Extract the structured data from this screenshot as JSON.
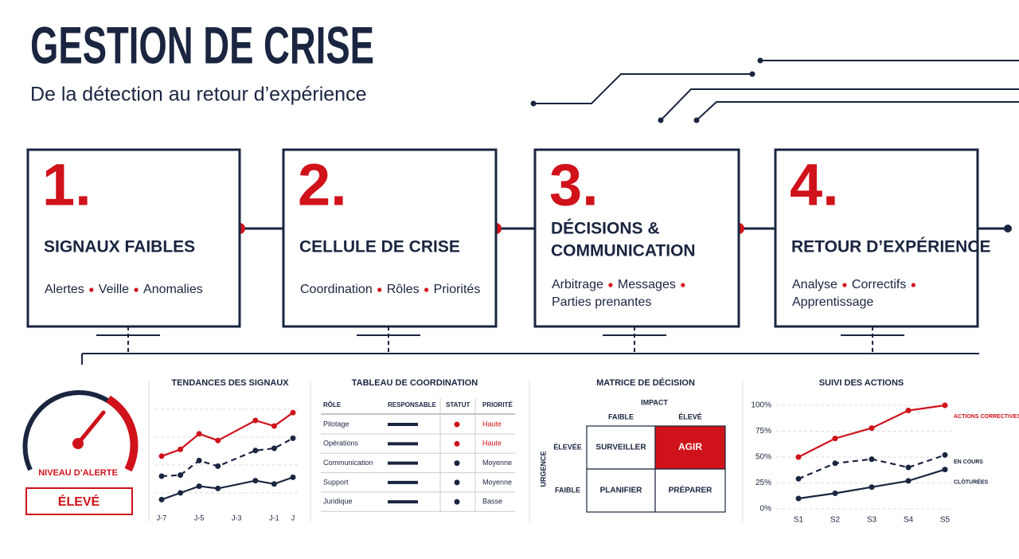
{
  "header": {
    "title": "GESTION DE CRISE",
    "subtitle": "De la détection au retour d’expérience"
  },
  "steps": [
    {
      "number": "1.",
      "title_lines": [
        "SIGNAUX FAIBLES"
      ],
      "items": [
        "Alertes",
        "Veille",
        "Anomalies"
      ]
    },
    {
      "number": "2.",
      "title_lines": [
        "CELLULE DE CRISE"
      ],
      "items": [
        "Coordination",
        "Rôles",
        "Priorités"
      ]
    },
    {
      "number": "3.",
      "title_lines": [
        "DÉCISIONS &",
        "COMMUNICATION"
      ],
      "items": [
        "Arbitrage",
        "Messages",
        "Parties prenantes"
      ]
    },
    {
      "number": "4.",
      "title_lines": [
        "RETOUR D’EXPÉRIENCE"
      ],
      "items": [
        "Analyse",
        "Correctifs",
        "Apprentissage"
      ]
    }
  ],
  "alert": {
    "label": "NIVEAU D’ALERTE",
    "value": "ÉLEVÉ"
  },
  "chart_data": [
    {
      "type": "line",
      "title": "TENDANCES DES SIGNAUX",
      "x": [
        -7,
        -6,
        -5,
        -4,
        -2,
        -1,
        0
      ],
      "xlim": [
        -7,
        0
      ],
      "xticks": [
        {
          "value": -7,
          "label": "J-7"
        },
        {
          "value": -5,
          "label": "J-5"
        },
        {
          "value": -3,
          "label": "J-3"
        },
        {
          "value": -1,
          "label": "J-1"
        },
        {
          "value": 0,
          "label": "J"
        }
      ],
      "ylim": [
        0,
        100
      ],
      "grid": true,
      "series": [
        {
          "color": "#d0121b",
          "dashed": false,
          "values": [
            48,
            54,
            68,
            62,
            80,
            75,
            87
          ]
        },
        {
          "color": "#1a2540",
          "dashed": true,
          "values": [
            30,
            31,
            44,
            39,
            53,
            55,
            64
          ]
        },
        {
          "color": "#1a2540",
          "dashed": false,
          "values": [
            9,
            15,
            21,
            19,
            26,
            23,
            29
          ]
        }
      ]
    },
    {
      "type": "line",
      "title": "SUIVI DES ACTIONS",
      "categories": [
        "S1",
        "S2",
        "S3",
        "S4",
        "S5"
      ],
      "ylim": [
        0,
        100
      ],
      "yticks": [
        {
          "value": 0,
          "label": "0%"
        },
        {
          "value": 25,
          "label": "25%"
        },
        {
          "value": 50,
          "label": "50%"
        },
        {
          "value": 75,
          "label": "75%"
        },
        {
          "value": 100,
          "label": "100%"
        }
      ],
      "grid": true,
      "series": [
        {
          "name": "ACTIONS CORRECTIVES",
          "color": "#d0121b",
          "dashed": false,
          "values": [
            50,
            68,
            78,
            95,
            100
          ]
        },
        {
          "name": "EN COURS",
          "color": "#1a2540",
          "dashed": true,
          "values": [
            29,
            44,
            48,
            40,
            52
          ]
        },
        {
          "name": "CLÔTURÉES",
          "color": "#1a2540",
          "dashed": false,
          "values": [
            10,
            15,
            21,
            27,
            38
          ]
        }
      ]
    }
  ],
  "table": {
    "title": "TABLEAU DE COORDINATION",
    "columns": [
      "RÔLE",
      "RESPONSABLE",
      "STATUT",
      "PRIORITÉ"
    ],
    "rows": [
      {
        "role": "Pilotage",
        "status_color": "#d0121b",
        "priority": "Haute"
      },
      {
        "role": "Opérations",
        "status_color": "#d0121b",
        "priority": "Haute"
      },
      {
        "role": "Communication",
        "status_color": "#1a2540",
        "priority": "Moyenne"
      },
      {
        "role": "Support",
        "status_color": "#1a2540",
        "priority": "Moyenne"
      },
      {
        "role": "Juridique",
        "status_color": "#1a2540",
        "priority": "Basse"
      }
    ]
  },
  "matrix": {
    "title": "MATRICE DE DÉCISION",
    "x_label": "IMPACT",
    "columns": [
      "FAIBLE",
      "ÉLEVÉ"
    ],
    "y_label": "URGENCE",
    "rows": [
      "ÉLEVÉE",
      "FAIBLE"
    ],
    "cells": [
      [
        "SURVEILLER",
        "AGIR"
      ],
      [
        "PLANIFIER",
        "PRÉPARER"
      ]
    ],
    "highlight": [
      0,
      1
    ]
  }
}
